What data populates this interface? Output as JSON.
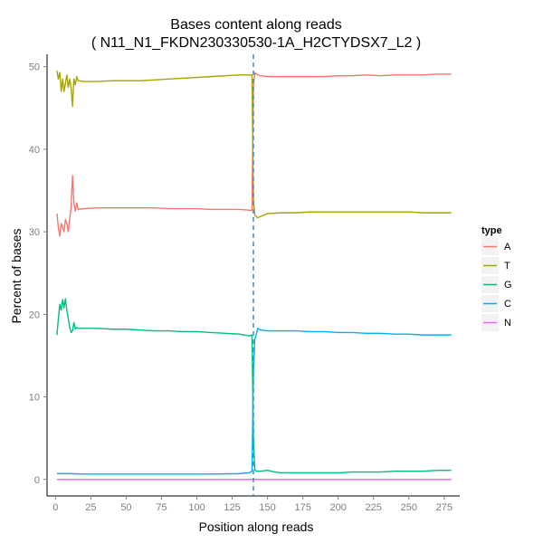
{
  "chart_data": {
    "type": "line",
    "title": "Bases content along reads",
    "subtitle": "( N11_N1_FKDN230330530-1A_H2CTYDSX7_L2 )",
    "xlabel": "Position along reads",
    "ylabel": "Percent of bases",
    "xlim": [
      -6,
      286
    ],
    "ylim": [
      -2,
      51.5
    ],
    "x_ticks": [
      0,
      25,
      50,
      75,
      100,
      125,
      150,
      175,
      200,
      225,
      250,
      275
    ],
    "y_ticks": [
      0,
      10,
      20,
      30,
      40,
      50
    ],
    "grid": false,
    "legend": {
      "title": "type",
      "position": "right",
      "entries": [
        {
          "label": "A",
          "color": "#F8766D"
        },
        {
          "label": "T",
          "color": "#A3A500"
        },
        {
          "label": "G",
          "color": "#00BF7D"
        },
        {
          "label": "C",
          "color": "#00B0F6"
        },
        {
          "label": "N",
          "color": "#E76BF3"
        }
      ]
    },
    "vline": {
      "x": 140,
      "color": "#3a8fd0",
      "style": "dashed"
    },
    "series": [
      {
        "name": "A",
        "color": "#F8766D",
        "points": [
          [
            1,
            32.2
          ],
          [
            2,
            30.5
          ],
          [
            3,
            29.5
          ],
          [
            4,
            31.0
          ],
          [
            5,
            30.5
          ],
          [
            6,
            30.0
          ],
          [
            7,
            31.5
          ],
          [
            8,
            31.0
          ],
          [
            9,
            30.0
          ],
          [
            10,
            31.5
          ],
          [
            11,
            33.0
          ],
          [
            12,
            36.8
          ],
          [
            13,
            33.5
          ],
          [
            14,
            32.5
          ],
          [
            15,
            33.5
          ],
          [
            16,
            32.7
          ],
          [
            20,
            32.8
          ],
          [
            30,
            32.9
          ],
          [
            40,
            32.9
          ],
          [
            50,
            32.9
          ],
          [
            60,
            32.9
          ],
          [
            70,
            32.9
          ],
          [
            80,
            32.8
          ],
          [
            90,
            32.8
          ],
          [
            100,
            32.8
          ],
          [
            110,
            32.7
          ],
          [
            120,
            32.7
          ],
          [
            130,
            32.7
          ],
          [
            139,
            32.6
          ],
          [
            140,
            47.5
          ],
          [
            141,
            49.3
          ],
          [
            142,
            49.1
          ],
          [
            145,
            48.9
          ],
          [
            150,
            48.8
          ],
          [
            160,
            48.8
          ],
          [
            170,
            48.8
          ],
          [
            180,
            48.8
          ],
          [
            190,
            48.8
          ],
          [
            200,
            48.9
          ],
          [
            210,
            48.9
          ],
          [
            220,
            49.0
          ],
          [
            230,
            48.9
          ],
          [
            240,
            49.0
          ],
          [
            250,
            49.0
          ],
          [
            260,
            49.0
          ],
          [
            270,
            49.1
          ],
          [
            280,
            49.1
          ]
        ]
      },
      {
        "name": "T",
        "color": "#A3A500",
        "points": [
          [
            1,
            49.5
          ],
          [
            2,
            48.5
          ],
          [
            3,
            49.3
          ],
          [
            4,
            47.0
          ],
          [
            5,
            48.5
          ],
          [
            6,
            47.0
          ],
          [
            7,
            48.0
          ],
          [
            8,
            49.0
          ],
          [
            9,
            47.5
          ],
          [
            10,
            48.5
          ],
          [
            11,
            47.5
          ],
          [
            12,
            45.2
          ],
          [
            13,
            48.5
          ],
          [
            14,
            47.8
          ],
          [
            15,
            48.8
          ],
          [
            16,
            48.3
          ],
          [
            20,
            48.2
          ],
          [
            30,
            48.2
          ],
          [
            40,
            48.3
          ],
          [
            50,
            48.3
          ],
          [
            60,
            48.3
          ],
          [
            70,
            48.4
          ],
          [
            80,
            48.5
          ],
          [
            90,
            48.6
          ],
          [
            100,
            48.7
          ],
          [
            110,
            48.8
          ],
          [
            120,
            48.9
          ],
          [
            130,
            49.0
          ],
          [
            139,
            49.0
          ],
          [
            140,
            34.0
          ],
          [
            141,
            32.0
          ],
          [
            143,
            31.7
          ],
          [
            147,
            32.0
          ],
          [
            150,
            32.2
          ],
          [
            160,
            32.3
          ],
          [
            170,
            32.3
          ],
          [
            180,
            32.4
          ],
          [
            190,
            32.4
          ],
          [
            200,
            32.4
          ],
          [
            210,
            32.4
          ],
          [
            220,
            32.4
          ],
          [
            230,
            32.4
          ],
          [
            240,
            32.4
          ],
          [
            250,
            32.4
          ],
          [
            260,
            32.3
          ],
          [
            270,
            32.3
          ],
          [
            280,
            32.3
          ]
        ]
      },
      {
        "name": "G",
        "color": "#00BF7D",
        "points": [
          [
            1,
            17.5
          ],
          [
            2,
            19.5
          ],
          [
            3,
            21.2
          ],
          [
            4,
            20.5
          ],
          [
            5,
            21.8
          ],
          [
            6,
            20.8
          ],
          [
            7,
            21.9
          ],
          [
            8,
            20.5
          ],
          [
            9,
            19.5
          ],
          [
            10,
            18.5
          ],
          [
            11,
            17.8
          ],
          [
            12,
            18.0
          ],
          [
            13,
            19.0
          ],
          [
            14,
            18.2
          ],
          [
            15,
            18.4
          ],
          [
            16,
            18.3
          ],
          [
            20,
            18.3
          ],
          [
            30,
            18.3
          ],
          [
            40,
            18.2
          ],
          [
            50,
            18.2
          ],
          [
            60,
            18.1
          ],
          [
            70,
            18.0
          ],
          [
            80,
            18.0
          ],
          [
            90,
            17.9
          ],
          [
            100,
            17.9
          ],
          [
            110,
            17.8
          ],
          [
            120,
            17.7
          ],
          [
            130,
            17.6
          ],
          [
            137,
            17.4
          ],
          [
            139,
            17.5
          ],
          [
            140,
            5.0
          ],
          [
            141,
            1.2
          ],
          [
            142,
            1.0
          ],
          [
            145,
            1.0
          ],
          [
            150,
            1.1
          ],
          [
            155,
            0.9
          ],
          [
            160,
            0.8
          ],
          [
            170,
            0.8
          ],
          [
            180,
            0.8
          ],
          [
            190,
            0.8
          ],
          [
            200,
            0.8
          ],
          [
            210,
            0.9
          ],
          [
            220,
            0.9
          ],
          [
            230,
            0.9
          ],
          [
            240,
            1.0
          ],
          [
            250,
            1.0
          ],
          [
            260,
            1.0
          ],
          [
            270,
            1.1
          ],
          [
            280,
            1.1
          ]
        ]
      },
      {
        "name": "C",
        "color": "#00B0F6",
        "points": [
          [
            1,
            0.7
          ],
          [
            5,
            0.7
          ],
          [
            10,
            0.7
          ],
          [
            20,
            0.65
          ],
          [
            30,
            0.65
          ],
          [
            50,
            0.65
          ],
          [
            70,
            0.65
          ],
          [
            90,
            0.65
          ],
          [
            110,
            0.65
          ],
          [
            130,
            0.7
          ],
          [
            137,
            0.8
          ],
          [
            139,
            1.0
          ],
          [
            140,
            13.0
          ],
          [
            141,
            17.0
          ],
          [
            142,
            17.5
          ],
          [
            143,
            18.3
          ],
          [
            145,
            18.1
          ],
          [
            150,
            18.0
          ],
          [
            160,
            18.0
          ],
          [
            170,
            18.0
          ],
          [
            180,
            17.9
          ],
          [
            190,
            17.9
          ],
          [
            200,
            17.8
          ],
          [
            210,
            17.8
          ],
          [
            220,
            17.7
          ],
          [
            230,
            17.7
          ],
          [
            240,
            17.6
          ],
          [
            250,
            17.6
          ],
          [
            260,
            17.5
          ],
          [
            270,
            17.5
          ],
          [
            280,
            17.5
          ]
        ]
      },
      {
        "name": "N",
        "color": "#E76BF3",
        "points": [
          [
            1,
            0.0
          ],
          [
            50,
            0.0
          ],
          [
            100,
            0.0
          ],
          [
            150,
            0.0
          ],
          [
            200,
            0.0
          ],
          [
            250,
            0.0
          ],
          [
            280,
            0.0
          ]
        ]
      }
    ]
  }
}
